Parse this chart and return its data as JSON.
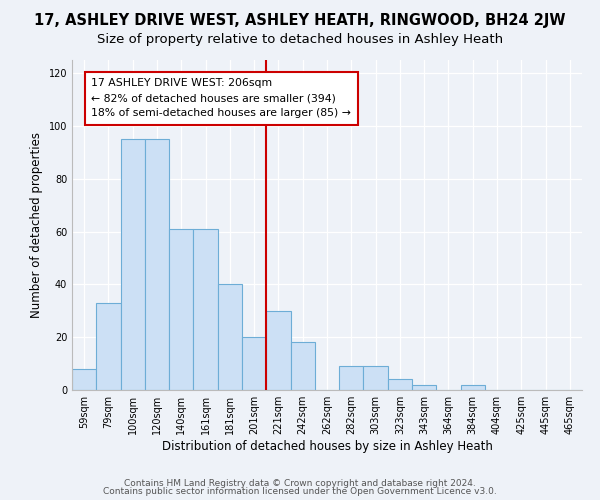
{
  "title": "17, ASHLEY DRIVE WEST, ASHLEY HEATH, RINGWOOD, BH24 2JW",
  "subtitle": "Size of property relative to detached houses in Ashley Heath",
  "xlabel": "Distribution of detached houses by size in Ashley Heath",
  "ylabel": "Number of detached properties",
  "bar_labels": [
    "59sqm",
    "79sqm",
    "100sqm",
    "120sqm",
    "140sqm",
    "161sqm",
    "181sqm",
    "201sqm",
    "221sqm",
    "242sqm",
    "262sqm",
    "282sqm",
    "303sqm",
    "323sqm",
    "343sqm",
    "364sqm",
    "384sqm",
    "404sqm",
    "425sqm",
    "445sqm",
    "465sqm"
  ],
  "bar_values": [
    8,
    33,
    95,
    95,
    61,
    61,
    40,
    20,
    30,
    18,
    0,
    9,
    9,
    4,
    2,
    0,
    2,
    0,
    0,
    0,
    0
  ],
  "bar_color": "#cce0f5",
  "bar_edge_color": "#6dadd6",
  "vline_x": 7.5,
  "vline_color": "#cc0000",
  "annotation_text": "17 ASHLEY DRIVE WEST: 206sqm\n← 82% of detached houses are smaller (394)\n18% of semi-detached houses are larger (85) →",
  "annotation_box_color": "white",
  "annotation_box_edge_color": "#cc0000",
  "ylim": [
    0,
    125
  ],
  "yticks": [
    0,
    20,
    40,
    60,
    80,
    100,
    120
  ],
  "footer1": "Contains HM Land Registry data © Crown copyright and database right 2024.",
  "footer2": "Contains public sector information licensed under the Open Government Licence v3.0.",
  "bg_color": "#eef2f8",
  "plot_bg_color": "#eef2f8",
  "title_fontsize": 10.5,
  "subtitle_fontsize": 9.5,
  "axis_label_fontsize": 8.5,
  "tick_fontsize": 7,
  "footer_fontsize": 6.5,
  "annot_fontsize": 7.8
}
